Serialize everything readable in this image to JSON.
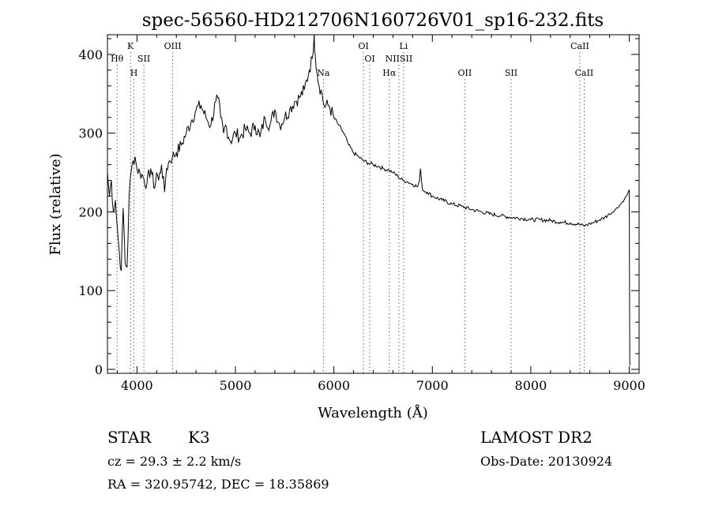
{
  "chart_data": {
    "type": "line",
    "title": "spec-56560-HD212706N160726V01_sp16-232.fits",
    "xlabel": "Wavelength (Å)",
    "ylabel": "Flux (relative)",
    "xlim": [
      3700,
      9100
    ],
    "ylim": [
      -5,
      425
    ],
    "xticks": [
      4000,
      5000,
      6000,
      7000,
      8000,
      9000
    ],
    "yticks": [
      0,
      100,
      200,
      300,
      400
    ],
    "grid": false,
    "series": [
      {
        "name": "",
        "x": [
          3700,
          3720,
          3740,
          3760,
          3780,
          3800,
          3820,
          3840,
          3860,
          3880,
          3900,
          3920,
          3940,
          3960,
          3980,
          4000,
          4030,
          4060,
          4100,
          4140,
          4180,
          4200,
          4220,
          4250,
          4280,
          4300,
          4330,
          4360,
          4400,
          4450,
          4500,
          4550,
          4600,
          4650,
          4700,
          4750,
          4800,
          4820,
          4850,
          4880,
          4900,
          4950,
          5000,
          5050,
          5100,
          5150,
          5200,
          5250,
          5300,
          5350,
          5400,
          5450,
          5500,
          5550,
          5600,
          5650,
          5700,
          5750,
          5780,
          5800,
          5810,
          5830,
          5850,
          5870,
          5900,
          5950,
          6000,
          6050,
          6100,
          6150,
          6200,
          6250,
          6300,
          6350,
          6400,
          6450,
          6500,
          6560,
          6600,
          6650,
          6700,
          6750,
          6800,
          6850,
          6870,
          6880,
          6900,
          6950,
          7000,
          7100,
          7200,
          7300,
          7400,
          7500,
          7600,
          7700,
          7800,
          7900,
          8000,
          8100,
          8200,
          8300,
          8400,
          8500,
          8540,
          8600,
          8650,
          8700,
          8750,
          8800,
          8850,
          8900,
          8950,
          8980,
          9000,
          9005
        ],
        "y": [
          250,
          220,
          240,
          200,
          215,
          180,
          150,
          125,
          205,
          135,
          130,
          220,
          250,
          265,
          270,
          255,
          250,
          245,
          235,
          255,
          230,
          250,
          240,
          260,
          225,
          255,
          265,
          270,
          275,
          285,
          300,
          315,
          330,
          335,
          320,
          310,
          340,
          345,
          320,
          300,
          310,
          290,
          300,
          295,
          305,
          300,
          310,
          295,
          320,
          310,
          330,
          310,
          320,
          330,
          340,
          345,
          355,
          380,
          395,
          425,
          400,
          375,
          360,
          355,
          335,
          335,
          320,
          310,
          300,
          285,
          275,
          270,
          265,
          262,
          260,
          258,
          255,
          253,
          250,
          245,
          240,
          238,
          235,
          232,
          240,
          255,
          228,
          225,
          220,
          215,
          210,
          207,
          203,
          200,
          197,
          195,
          193,
          192,
          190,
          190,
          189,
          187,
          186,
          184,
          182,
          185,
          187,
          190,
          193,
          197,
          202,
          208,
          216,
          222,
          228,
          5
        ]
      }
    ],
    "spectral_lines": [
      {
        "label": "Hθ",
        "wavelength": 3798,
        "row": 2
      },
      {
        "label": "K",
        "wavelength": 3934,
        "row": 1
      },
      {
        "label": "H",
        "wavelength": 3969,
        "row": 3
      },
      {
        "label": "SII",
        "wavelength": 4070,
        "row": 2
      },
      {
        "label": "OIII",
        "wavelength": 4363,
        "row": 1
      },
      {
        "label": "Na",
        "wavelength": 5893,
        "row": 3
      },
      {
        "label": "OI",
        "wavelength": 6300,
        "row": 1
      },
      {
        "label": "OI",
        "wavelength": 6364,
        "row": 2
      },
      {
        "label": "Li",
        "wavelength": 6708,
        "row": 1
      },
      {
        "label": "Hα",
        "wavelength": 6563,
        "row": 3
      },
      {
        "label": "NIISII",
        "wavelength": 6660,
        "row": 2
      },
      {
        "label": "OII",
        "wavelength": 7330,
        "row": 3
      },
      {
        "label": "SII",
        "wavelength": 7800,
        "row": 3
      },
      {
        "label": "CaII",
        "wavelength": 8498,
        "row": 1
      },
      {
        "label": "CaII",
        "wavelength": 8542,
        "row": 3
      }
    ]
  },
  "info": {
    "object_type": "STAR",
    "subclass": "K3",
    "survey": "LAMOST DR2",
    "cz": "cz = 29.3 ± 2.2 km/s",
    "obs_date": "Obs-Date: 20130924",
    "coords": "RA = 320.95742, DEC =  18.35869"
  }
}
